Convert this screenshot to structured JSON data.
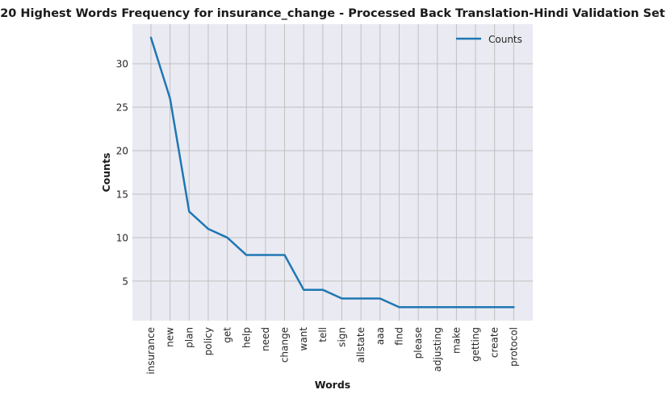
{
  "chart_data": {
    "type": "line",
    "title": "20 Highest Words Frequency for insurance_change - Processed Back Translation-Hindi Validation Set",
    "xlabel": "Words",
    "ylabel": "Counts",
    "categories": [
      "insurance",
      "new",
      "plan",
      "policy",
      "get",
      "help",
      "need",
      "change",
      "want",
      "tell",
      "sign",
      "allstate",
      "aaa",
      "find",
      "please",
      "adjusting",
      "make",
      "getting",
      "create",
      "protocol"
    ],
    "series": [
      {
        "name": "Counts",
        "values": [
          33,
          26,
          13,
          11,
          10,
          8,
          8,
          8,
          4,
          4,
          3,
          3,
          3,
          2,
          2,
          2,
          2,
          2,
          2,
          2
        ]
      }
    ],
    "ylim": [
      0.45,
      34.55
    ],
    "yticks": [
      5,
      10,
      15,
      20,
      25,
      30
    ],
    "grid": true,
    "legend": "top-right",
    "colors": {
      "line": "#1f77b4",
      "plot_bg": "#eaeaf2",
      "grid": "#c0c0c0"
    }
  }
}
